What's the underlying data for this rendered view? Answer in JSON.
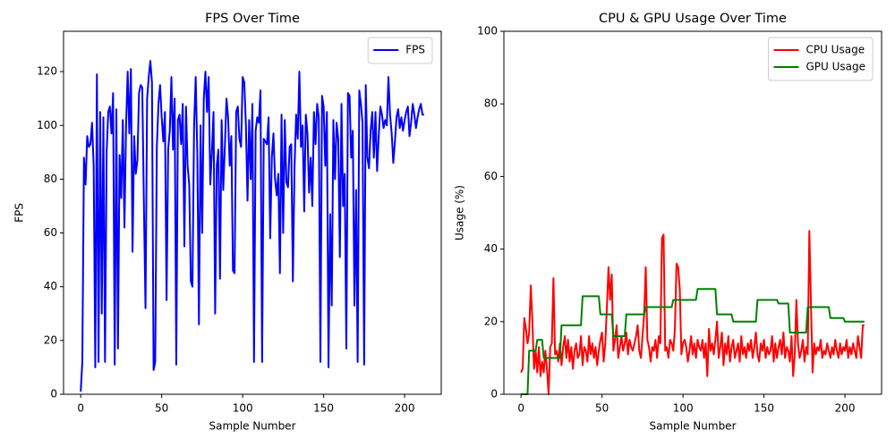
{
  "chart_data": [
    {
      "type": "line",
      "title": "FPS Over Time",
      "x_label": "Sample Number",
      "y_label": "FPS",
      "x": [
        0,
        1,
        2,
        3,
        4,
        5,
        6,
        7,
        8,
        9,
        10,
        11,
        12,
        13,
        14,
        15,
        16,
        17,
        18,
        19,
        20,
        21,
        22,
        23,
        24,
        25,
        26,
        27,
        28,
        29,
        30,
        31,
        32,
        33,
        34,
        35,
        36,
        37,
        38,
        39,
        40,
        41,
        42,
        43,
        44,
        45,
        46,
        47,
        48,
        49,
        50,
        51,
        52,
        53,
        54,
        55,
        56,
        57,
        58,
        59,
        60,
        61,
        62,
        63,
        64,
        65,
        66,
        67,
        68,
        69,
        70,
        71,
        72,
        73,
        74,
        75,
        76,
        77,
        78,
        79,
        80,
        81,
        82,
        83,
        84,
        85,
        86,
        87,
        88,
        89,
        90,
        91,
        92,
        93,
        94,
        95,
        96,
        97,
        98,
        99,
        100,
        101,
        102,
        103,
        104,
        105,
        106,
        107,
        108,
        109,
        110,
        111,
        112,
        113,
        114,
        115,
        116,
        117,
        118,
        119,
        120,
        121,
        122,
        123,
        124,
        125,
        126,
        127,
        128,
        129,
        130,
        131,
        132,
        133,
        134,
        135,
        136,
        137,
        138,
        139,
        140,
        141,
        142,
        143,
        144,
        145,
        146,
        147,
        148,
        149,
        150,
        151,
        152,
        153,
        154,
        155,
        156,
        157,
        158,
        159,
        160,
        161,
        162,
        163,
        164,
        165,
        166,
        167,
        168,
        169,
        170,
        171,
        172,
        173,
        174,
        175,
        176,
        177,
        178,
        179,
        180,
        181,
        182,
        183,
        184,
        185,
        186,
        187,
        188,
        189,
        190,
        191,
        192,
        193,
        194,
        195,
        196,
        197,
        198,
        199,
        200,
        201,
        202,
        203,
        204,
        205,
        206,
        207,
        208,
        209,
        210,
        211,
        212
      ],
      "series": [
        {
          "name": "FPS",
          "color": "#0000ff",
          "values": [
            1,
            12,
            88,
            78,
            96,
            92,
            93,
            101,
            85,
            10,
            119,
            12,
            105,
            30,
            103,
            12,
            90,
            105,
            107,
            97,
            112,
            11,
            106,
            17,
            89,
            73,
            102,
            62,
            100,
            120,
            97,
            121,
            53,
            96,
            82,
            87,
            112,
            115,
            114,
            71,
            32,
            110,
            118,
            124,
            116,
            9,
            12,
            92,
            108,
            115,
            103,
            94,
            105,
            35,
            91,
            98,
            118,
            91,
            110,
            11,
            102,
            104,
            93,
            108,
            55,
            107,
            85,
            78,
            42,
            40,
            100,
            118,
            89,
            26,
            100,
            60,
            110,
            120,
            105,
            118,
            78,
            90,
            105,
            30,
            85,
            91,
            43,
            102,
            76,
            92,
            110,
            103,
            85,
            96,
            46,
            45,
            105,
            107,
            95,
            92,
            118,
            116,
            100,
            72,
            102,
            80,
            108,
            12,
            98,
            103,
            101,
            113,
            12,
            95,
            94,
            93,
            103,
            58,
            88,
            97,
            80,
            74,
            82,
            45,
            104,
            60,
            102,
            79,
            77,
            92,
            93,
            42,
            84,
            104,
            95,
            120,
            92,
            100,
            68,
            104,
            97,
            75,
            88,
            70,
            105,
            93,
            108,
            103,
            12,
            111,
            107,
            85,
            105,
            10,
            67,
            33,
            102,
            80,
            101,
            95,
            51,
            108,
            70,
            82,
            17,
            112,
            111,
            88,
            98,
            33,
            76,
            12,
            113,
            108,
            101,
            11,
            115,
            88,
            84,
            98,
            105,
            88,
            105,
            83,
            96,
            107,
            104,
            99,
            102,
            100,
            118,
            104,
            97,
            86,
            94,
            103,
            106,
            99,
            103,
            98,
            102,
            105,
            107,
            96,
            101,
            108,
            104,
            99,
            103,
            106,
            108,
            104,
            104
          ]
        }
      ],
      "xlim": [
        -10.6,
        222.6
      ],
      "ylim": [
        0,
        135
      ],
      "xticks": [
        0,
        50,
        100,
        150,
        200
      ],
      "yticks": [
        0,
        20,
        40,
        60,
        80,
        100,
        120
      ],
      "legend": "upper right"
    },
    {
      "type": "line",
      "title": "CPU & GPU Usage Over Time",
      "x_label": "Sample Number",
      "y_label": "Usage (%)",
      "x": [
        0,
        1,
        2,
        3,
        4,
        5,
        6,
        7,
        8,
        9,
        10,
        11,
        12,
        13,
        14,
        15,
        16,
        17,
        18,
        19,
        20,
        21,
        22,
        23,
        24,
        25,
        26,
        27,
        28,
        29,
        30,
        31,
        32,
        33,
        34,
        35,
        36,
        37,
        38,
        39,
        40,
        41,
        42,
        43,
        44,
        45,
        46,
        47,
        48,
        49,
        50,
        51,
        52,
        53,
        54,
        55,
        56,
        57,
        58,
        59,
        60,
        61,
        62,
        63,
        64,
        65,
        66,
        67,
        68,
        69,
        70,
        71,
        72,
        73,
        74,
        75,
        76,
        77,
        78,
        79,
        80,
        81,
        82,
        83,
        84,
        85,
        86,
        87,
        88,
        89,
        90,
        91,
        92,
        93,
        94,
        95,
        96,
        97,
        98,
        99,
        100,
        101,
        102,
        103,
        104,
        105,
        106,
        107,
        108,
        109,
        110,
        111,
        112,
        113,
        114,
        115,
        116,
        117,
        118,
        119,
        120,
        121,
        122,
        123,
        124,
        125,
        126,
        127,
        128,
        129,
        130,
        131,
        132,
        133,
        134,
        135,
        136,
        137,
        138,
        139,
        140,
        141,
        142,
        143,
        144,
        145,
        146,
        147,
        148,
        149,
        150,
        151,
        152,
        153,
        154,
        155,
        156,
        157,
        158,
        159,
        160,
        161,
        162,
        163,
        164,
        165,
        166,
        167,
        168,
        169,
        170,
        171,
        172,
        173,
        174,
        175,
        176,
        177,
        178,
        179,
        180,
        181,
        182,
        183,
        184,
        185,
        186,
        187,
        188,
        189,
        190,
        191,
        192,
        193,
        194,
        195,
        196,
        197,
        198,
        199,
        200,
        201,
        202,
        203,
        204,
        205,
        206,
        207,
        208,
        209,
        210,
        211,
        212
      ],
      "series": [
        {
          "name": "CPU Usage",
          "color": "#ff0000",
          "values": [
            6,
            7,
            21,
            18,
            14,
            17,
            30,
            20,
            7,
            12,
            6,
            13,
            5,
            9,
            6,
            12,
            7,
            0,
            13,
            14,
            32,
            11,
            12,
            9,
            14,
            8,
            13,
            16,
            10,
            15,
            9,
            13,
            7,
            12,
            14,
            10,
            11,
            16,
            8,
            13,
            12,
            9,
            16,
            11,
            14,
            10,
            13,
            8,
            12,
            15,
            17,
            9,
            14,
            24,
            35,
            26,
            33,
            12,
            15,
            19,
            10,
            13,
            16,
            12,
            14,
            17,
            11,
            15,
            13,
            12,
            14,
            16,
            19,
            12,
            10,
            16,
            22,
            35,
            15,
            13,
            9,
            13,
            12,
            15,
            10,
            16,
            14,
            43,
            44,
            12,
            13,
            10,
            15,
            14,
            12,
            18,
            36,
            35,
            29,
            11,
            14,
            15,
            13,
            9,
            12,
            16,
            11,
            14,
            10,
            15,
            13,
            12,
            15,
            10,
            14,
            5,
            18,
            12,
            14,
            11,
            15,
            20,
            10,
            13,
            17,
            8,
            14,
            11,
            16,
            9,
            13,
            15,
            10,
            12,
            14,
            9,
            16,
            11,
            13,
            10,
            14,
            12,
            15,
            10,
            13,
            17,
            11,
            9,
            14,
            12,
            15,
            10,
            13,
            11,
            12,
            16,
            9,
            14,
            10,
            13,
            15,
            11,
            17,
            10,
            13,
            12,
            9,
            16,
            5,
            11,
            26,
            14,
            10,
            12,
            15,
            9,
            13,
            11,
            45,
            25,
            6,
            14,
            11,
            13,
            12,
            15,
            10,
            12,
            11,
            14,
            12,
            10,
            13,
            11,
            15,
            12,
            10,
            14,
            11,
            13,
            12,
            15,
            10,
            13,
            11,
            14,
            12,
            10,
            16,
            13,
            10,
            19,
            19
          ]
        },
        {
          "name": "GPU Usage",
          "color": "#008000",
          "values": [
            0,
            0,
            0,
            0,
            0,
            12,
            12,
            12,
            12,
            12,
            15,
            15,
            15,
            15,
            10,
            10,
            10,
            10,
            10,
            10,
            10,
            10,
            10,
            10,
            10,
            19,
            19,
            19,
            19,
            19,
            19,
            19,
            19,
            19,
            19,
            19,
            19,
            19,
            27,
            27,
            27,
            27,
            27,
            27,
            27,
            27,
            27,
            27,
            27,
            22,
            22,
            22,
            22,
            22,
            22,
            22,
            22,
            16,
            16,
            16,
            16,
            16,
            16,
            16,
            16,
            22,
            22,
            22,
            22,
            22,
            22,
            22,
            22,
            22,
            22,
            22,
            22,
            24,
            24,
            24,
            24,
            24,
            24,
            24,
            24,
            24,
            24,
            24,
            24,
            24,
            24,
            24,
            24,
            24,
            26,
            26,
            26,
            26,
            26,
            26,
            26,
            26,
            26,
            26,
            26,
            26,
            26,
            26,
            26,
            29,
            29,
            29,
            29,
            29,
            29,
            29,
            29,
            29,
            29,
            29,
            29,
            22,
            22,
            22,
            22,
            22,
            22,
            22,
            22,
            22,
            22,
            20,
            20,
            20,
            20,
            20,
            20,
            20,
            20,
            20,
            20,
            20,
            20,
            20,
            20,
            20,
            26,
            26,
            26,
            26,
            26,
            26,
            26,
            26,
            26,
            26,
            26,
            26,
            26,
            25,
            25,
            25,
            25,
            25,
            25,
            25,
            17,
            17,
            17,
            17,
            17,
            17,
            17,
            17,
            17,
            17,
            17,
            24,
            24,
            24,
            24,
            24,
            24,
            24,
            24,
            24,
            24,
            24,
            24,
            24,
            24,
            21,
            21,
            21,
            21,
            21,
            21,
            21,
            21,
            21,
            20,
            20,
            20,
            20,
            20,
            20,
            20,
            20,
            20,
            20,
            20,
            20,
            20
          ]
        }
      ],
      "xlim": [
        -10.6,
        222.6
      ],
      "ylim": [
        0,
        100
      ],
      "xticks": [
        0,
        50,
        100,
        150,
        200
      ],
      "yticks": [
        0,
        20,
        40,
        60,
        80,
        100
      ],
      "legend": "upper right"
    }
  ]
}
